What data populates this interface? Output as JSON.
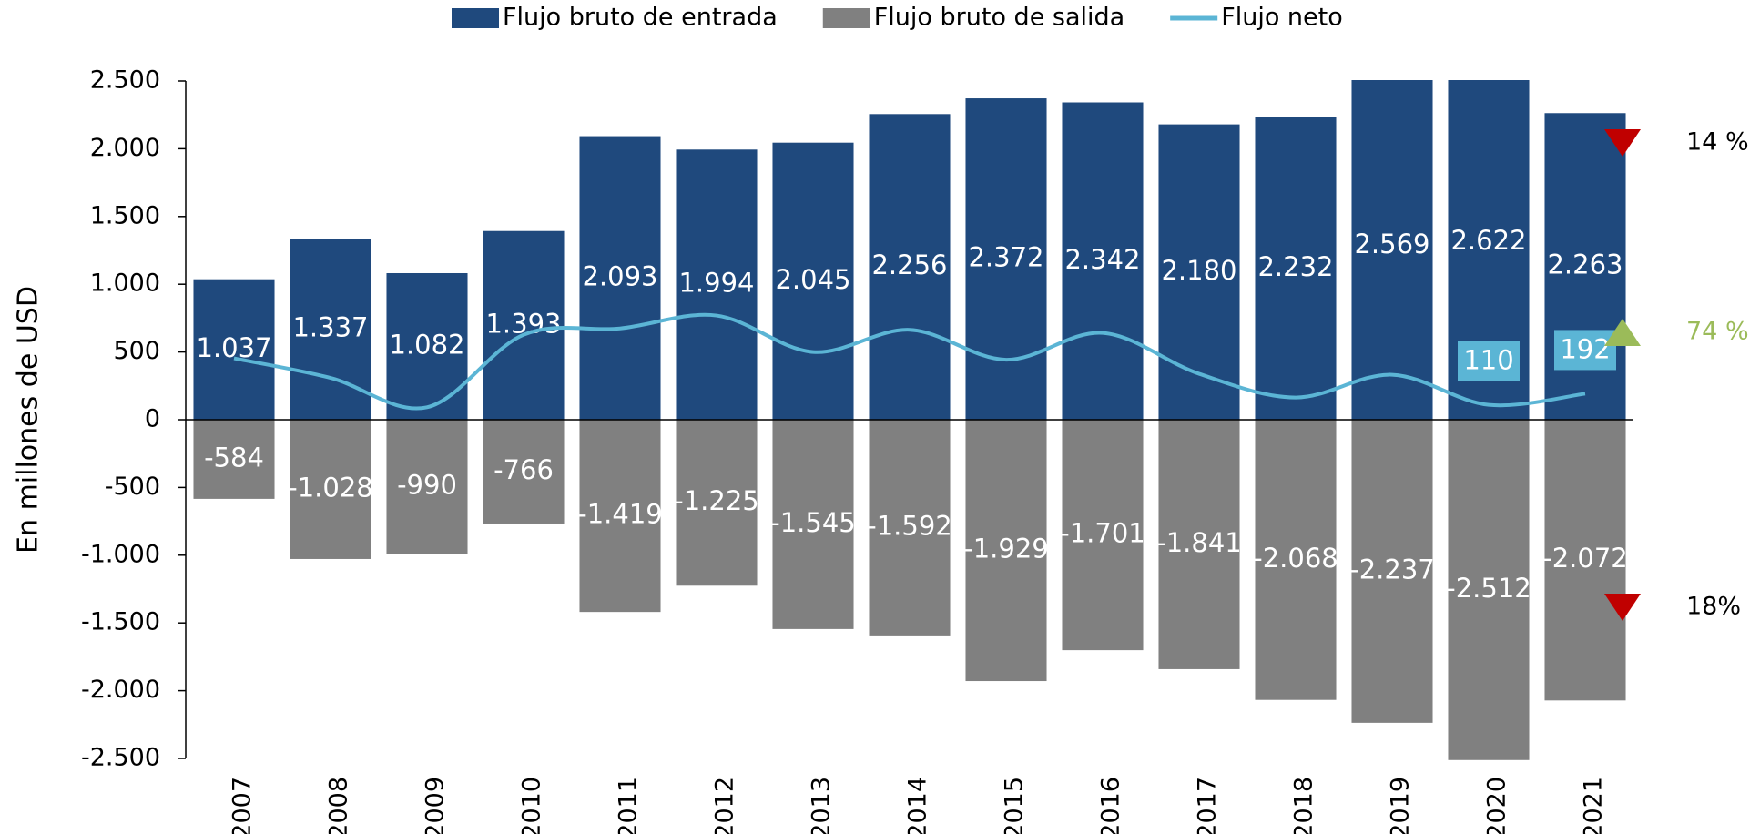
{
  "chart_data": {
    "type": "bar",
    "y_label": "En millones de USD",
    "categories": [
      "2007",
      "2008",
      "2009",
      "2010",
      "2011",
      "2012",
      "2013",
      "2014",
      "2015",
      "2016",
      "2017",
      "2018",
      "2019",
      "2020",
      "2021"
    ],
    "series": [
      {
        "name": "Flujo bruto de entrada",
        "type": "bar",
        "color": "#1f497d",
        "values": [
          1037,
          1337,
          1082,
          1393,
          2093,
          1994,
          2045,
          2256,
          2372,
          2342,
          2180,
          2232,
          2569,
          2622,
          2263
        ],
        "value_labels": [
          "1.037",
          "1.337",
          "1.082",
          "1.393",
          "2.093",
          "1.994",
          "2.045",
          "2.256",
          "2.372",
          "2.342",
          "2.180",
          "2.232",
          "2.569",
          "2.622",
          "2.263"
        ]
      },
      {
        "name": "Flujo bruto de salida",
        "type": "bar",
        "color": "#808080",
        "values": [
          -584,
          -1028,
          -990,
          -766,
          -1419,
          -1225,
          -1545,
          -1592,
          -1929,
          -1701,
          -1841,
          -2068,
          -2237,
          -2512,
          -2072
        ],
        "value_labels": [
          "-584",
          "-1.028",
          "-990",
          "-766",
          "-1.419",
          "-1.225",
          "-1.545",
          "-1.592",
          "-1.929",
          "-1.701",
          "-1.841",
          "-2.068",
          "-2.237",
          "-2.512",
          "-2.072"
        ]
      },
      {
        "name": "Flujo neto",
        "type": "line",
        "color": "#5bb5d5",
        "values": [
          453,
          309,
          92,
          627,
          674,
          769,
          500,
          664,
          443,
          641,
          339,
          164,
          332,
          110,
          192
        ],
        "value_labels": [
          null,
          null,
          null,
          null,
          null,
          null,
          null,
          null,
          null,
          null,
          null,
          null,
          null,
          "110",
          "192"
        ]
      }
    ],
    "ylim": [
      -2500,
      2500
    ],
    "yticks": [
      {
        "value": 2500,
        "label": "2.500"
      },
      {
        "value": 2000,
        "label": "2.000"
      },
      {
        "value": 1500,
        "label": "1.500"
      },
      {
        "value": 1000,
        "label": "1.000"
      },
      500,
      0,
      -500,
      {
        "value": -1000,
        "label": "-1.000"
      },
      {
        "value": -1500,
        "label": "-1.500"
      },
      {
        "value": -2000,
        "label": "-2.000"
      },
      {
        "value": -2500,
        "label": "-2.500"
      }
    ],
    "legend": "top",
    "annotations": [
      {
        "text": "14 %",
        "direction": "down",
        "color": "#c00000"
      },
      {
        "text": "74 %",
        "direction": "up",
        "color": "#9bbb59"
      },
      {
        "text": "18%",
        "direction": "down",
        "color": "#c00000"
      }
    ]
  }
}
